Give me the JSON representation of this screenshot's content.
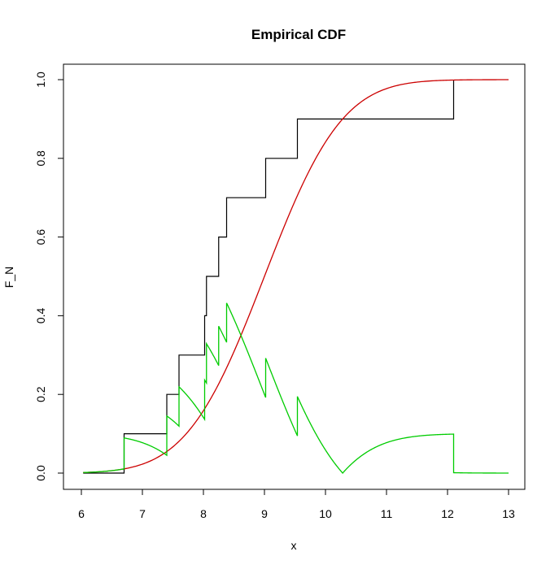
{
  "chart_data": {
    "type": "line",
    "title": "Empirical CDF",
    "xlabel": "x",
    "ylabel": "F_N",
    "xlim": [
      6,
      13
    ],
    "ylim": [
      0,
      1
    ],
    "x_ticks": [
      "6",
      "7",
      "8",
      "9",
      "10",
      "11",
      "12",
      "13"
    ],
    "y_ticks": [
      "0.0",
      "0.2",
      "0.4",
      "0.6",
      "0.8",
      "1.0"
    ],
    "grid": false,
    "legend": "none",
    "normal": {
      "mean": 9.0,
      "sd": 1.0
    },
    "samples": [
      6.7,
      7.4,
      7.6,
      8.02,
      8.05,
      8.25,
      8.38,
      9.02,
      9.54,
      12.1
    ],
    "series": [
      {
        "kind": "ecdf_step",
        "color": "#000000",
        "x": [
          6.03,
          6.7,
          7.4,
          7.6,
          8.02,
          8.05,
          8.25,
          8.38,
          9.02,
          9.54,
          12.1
        ],
        "y": [
          0.0,
          0.1,
          0.2,
          0.3,
          0.4,
          0.5,
          0.6,
          0.7,
          0.8,
          0.9,
          1.0
        ],
        "x_end": 12.1
      },
      {
        "kind": "normal_cdf",
        "color": "#cc0000",
        "x_range": [
          6.03,
          13.0
        ]
      },
      {
        "kind": "abs_difference",
        "color": "#00cc00",
        "x_range": [
          6.03,
          13.0
        ]
      }
    ]
  }
}
